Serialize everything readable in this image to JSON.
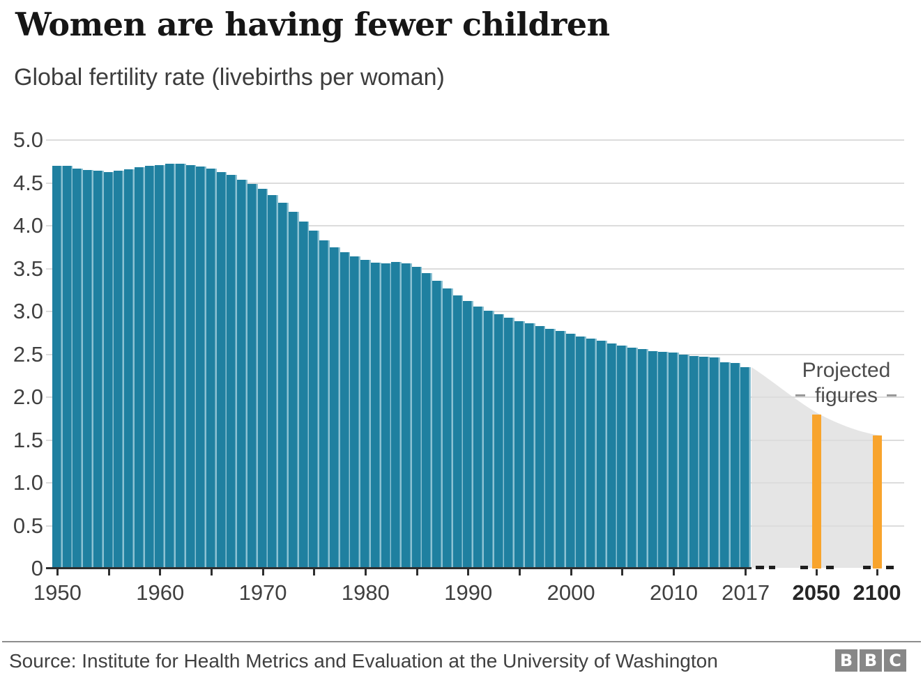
{
  "header": {
    "title": "Women are having fewer children",
    "subtitle": "Global fertility rate (livebirths per woman)"
  },
  "annotation": {
    "line1": "Projected",
    "line2": "figures"
  },
  "footer": {
    "source": "Source: Institute for Health Metrics and Evaluation at the University of Washington",
    "logo_letters": [
      "B",
      "B",
      "C"
    ]
  },
  "chart_data": {
    "type": "bar",
    "title": "Women are having fewer children",
    "ylabel": "Global fertility rate (livebirths per woman)",
    "ylim": [
      0,
      5
    ],
    "grid": true,
    "years": [
      1950,
      1951,
      1952,
      1953,
      1954,
      1955,
      1956,
      1957,
      1958,
      1959,
      1960,
      1961,
      1962,
      1963,
      1964,
      1965,
      1966,
      1967,
      1968,
      1969,
      1970,
      1971,
      1972,
      1973,
      1974,
      1975,
      1976,
      1977,
      1978,
      1979,
      1980,
      1981,
      1982,
      1983,
      1984,
      1985,
      1986,
      1987,
      1988,
      1989,
      1990,
      1991,
      1992,
      1993,
      1994,
      1995,
      1996,
      1997,
      1998,
      1999,
      2000,
      2001,
      2002,
      2003,
      2004,
      2005,
      2006,
      2007,
      2008,
      2009,
      2010,
      2011,
      2012,
      2013,
      2014,
      2015,
      2016,
      2017
    ],
    "values": [
      4.7,
      4.7,
      4.67,
      4.65,
      4.64,
      4.63,
      4.64,
      4.66,
      4.68,
      4.7,
      4.71,
      4.72,
      4.72,
      4.71,
      4.69,
      4.67,
      4.63,
      4.59,
      4.54,
      4.49,
      4.43,
      4.36,
      4.27,
      4.16,
      4.05,
      3.94,
      3.83,
      3.75,
      3.69,
      3.64,
      3.6,
      3.57,
      3.56,
      3.58,
      3.56,
      3.52,
      3.45,
      3.36,
      3.27,
      3.19,
      3.12,
      3.06,
      3.01,
      2.97,
      2.93,
      2.89,
      2.86,
      2.83,
      2.8,
      2.77,
      2.74,
      2.71,
      2.68,
      2.66,
      2.63,
      2.6,
      2.58,
      2.56,
      2.54,
      2.53,
      2.52,
      2.5,
      2.48,
      2.47,
      2.46,
      2.41,
      2.4,
      2.35
    ],
    "projection": {
      "label": "Projected figures",
      "area_start_year": 2017,
      "area_start_value": 2.35,
      "bars": [
        {
          "year": 2050,
          "value": 1.8
        },
        {
          "year": 2100,
          "value": 1.55
        }
      ]
    },
    "ytick_values": [
      5,
      4.5,
      4,
      3.5,
      3,
      2.5,
      2,
      1.5,
      1,
      0.5,
      0
    ],
    "ytick_labels": [
      "5.0",
      "4.5",
      "4.0",
      "3.5",
      "3.0",
      "2.5",
      "2.0",
      "1.5",
      "1.0",
      "0.5",
      "0"
    ],
    "xtick_labels": [
      {
        "year": 1950,
        "text": "1950",
        "bold": false
      },
      {
        "year": 1960,
        "text": "1960",
        "bold": false
      },
      {
        "year": 1970,
        "text": "1970",
        "bold": false
      },
      {
        "year": 1980,
        "text": "1980",
        "bold": false
      },
      {
        "year": 1990,
        "text": "1990",
        "bold": false
      },
      {
        "year": 2000,
        "text": "2000",
        "bold": false
      },
      {
        "year": 2010,
        "text": "2010",
        "bold": false
      },
      {
        "year": 2017,
        "text": "2017",
        "bold": false
      },
      {
        "year": 2050,
        "text": "2050",
        "bold": true
      },
      {
        "year": 2100,
        "text": "2100",
        "bold": true
      }
    ],
    "colors": {
      "bar": "#1f80a0",
      "bar_separator": "#8dc2d3",
      "projected_bar": "#f8a42d",
      "projected_area": "#e5e5e5",
      "gridline": "#dcdcdc",
      "axis": "#2e2e2e",
      "label_text": "#404040"
    }
  }
}
